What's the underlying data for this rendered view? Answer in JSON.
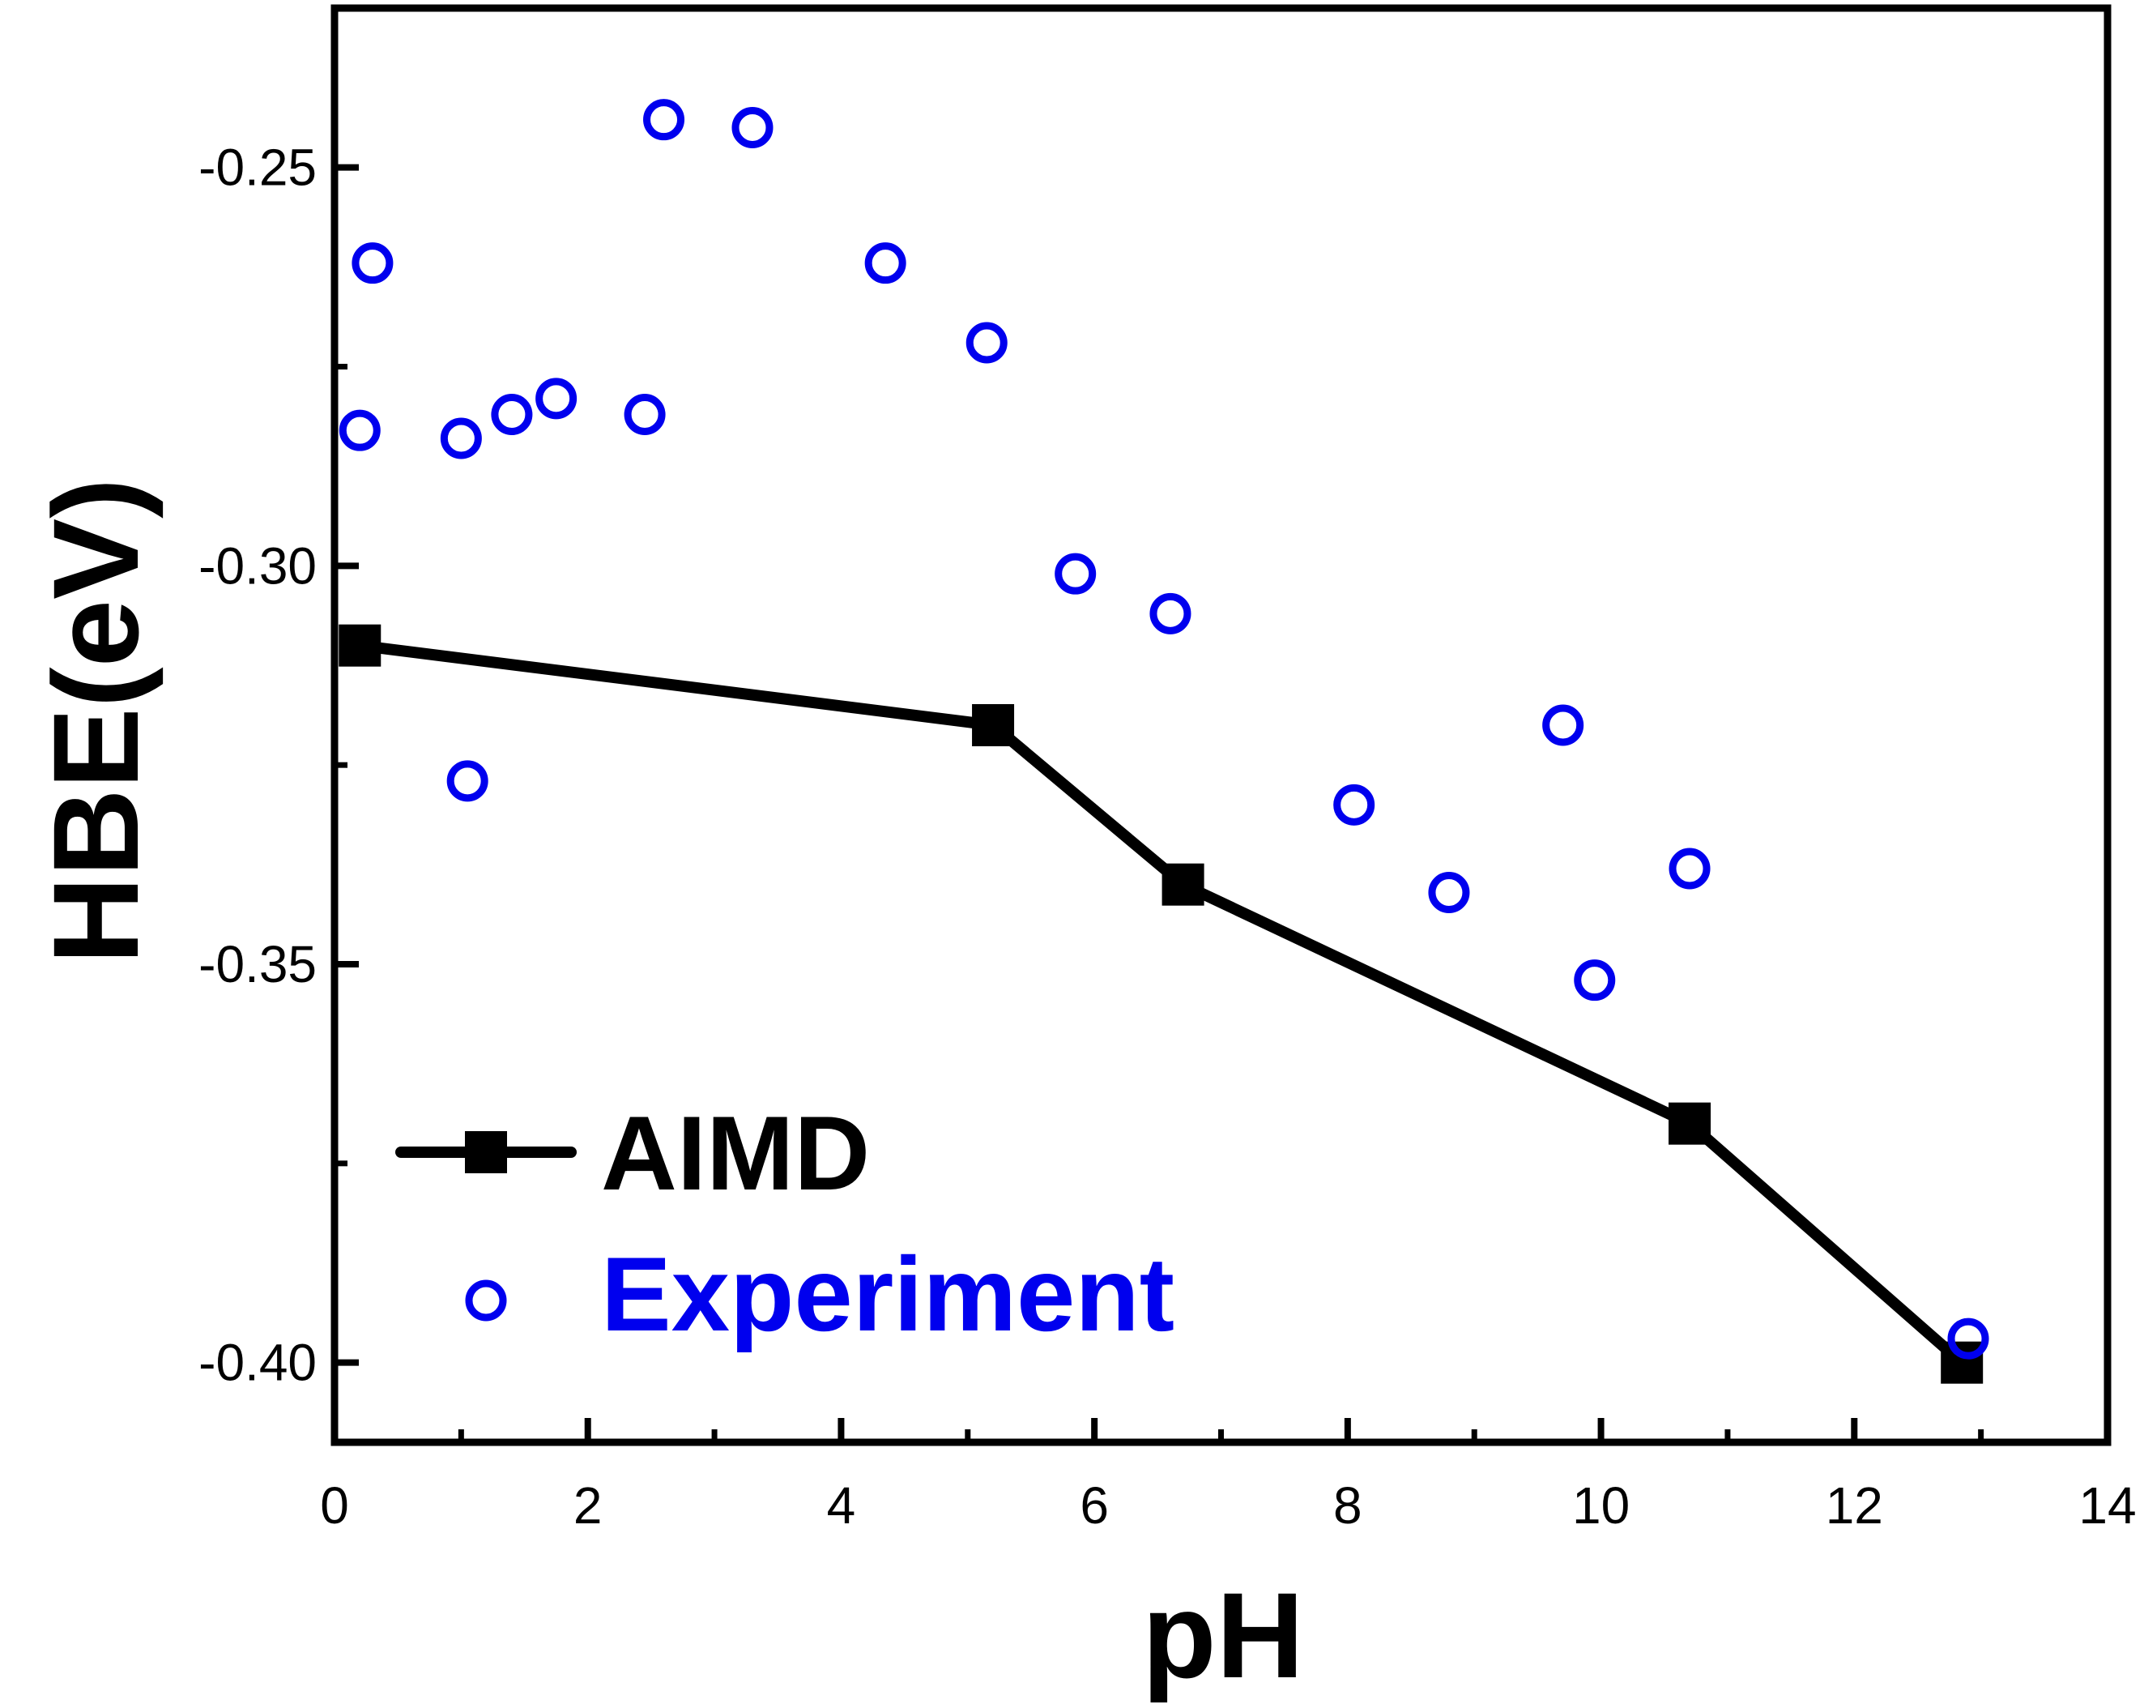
{
  "chart_data": {
    "type": "scatter",
    "title": "",
    "xlabel": "pH",
    "ylabel": "HBE(eV)",
    "xlim": [
      0,
      14
    ],
    "ylim": [
      -0.41,
      -0.23
    ],
    "x_ticks": [
      0,
      2,
      4,
      6,
      8,
      10,
      12,
      14
    ],
    "x_tick_labels": [
      "0",
      "2",
      "4",
      "6",
      "8",
      "10",
      "12",
      "14"
    ],
    "y_ticks": [
      -0.25,
      -0.3,
      -0.35,
      -0.4
    ],
    "y_tick_labels": [
      "-0.25",
      "-0.30",
      "-0.35",
      "-0.40"
    ],
    "grid": false,
    "legend_position": "bottom-left",
    "series": [
      {
        "name": "AIMD",
        "style": "line+square",
        "color": "#000000",
        "x": [
          0.2,
          5.2,
          6.7,
          10.7,
          12.85
        ],
        "y": [
          -0.31,
          -0.32,
          -0.34,
          -0.37,
          -0.4
        ]
      },
      {
        "name": "Experiment",
        "style": "open-circle",
        "color": "#0000ee",
        "x": [
          0.2,
          0.3,
          1.0,
          1.05,
          1.4,
          1.75,
          2.45,
          2.6,
          3.3,
          4.35,
          5.15,
          5.85,
          6.6,
          8.05,
          8.8,
          9.7,
          9.95,
          10.7,
          12.9
        ],
        "y": [
          -0.283,
          -0.262,
          -0.284,
          -0.327,
          -0.281,
          -0.279,
          -0.281,
          -0.244,
          -0.245,
          -0.262,
          -0.272,
          -0.301,
          -0.306,
          -0.33,
          -0.341,
          -0.32,
          -0.352,
          -0.338,
          -0.397
        ]
      }
    ]
  }
}
